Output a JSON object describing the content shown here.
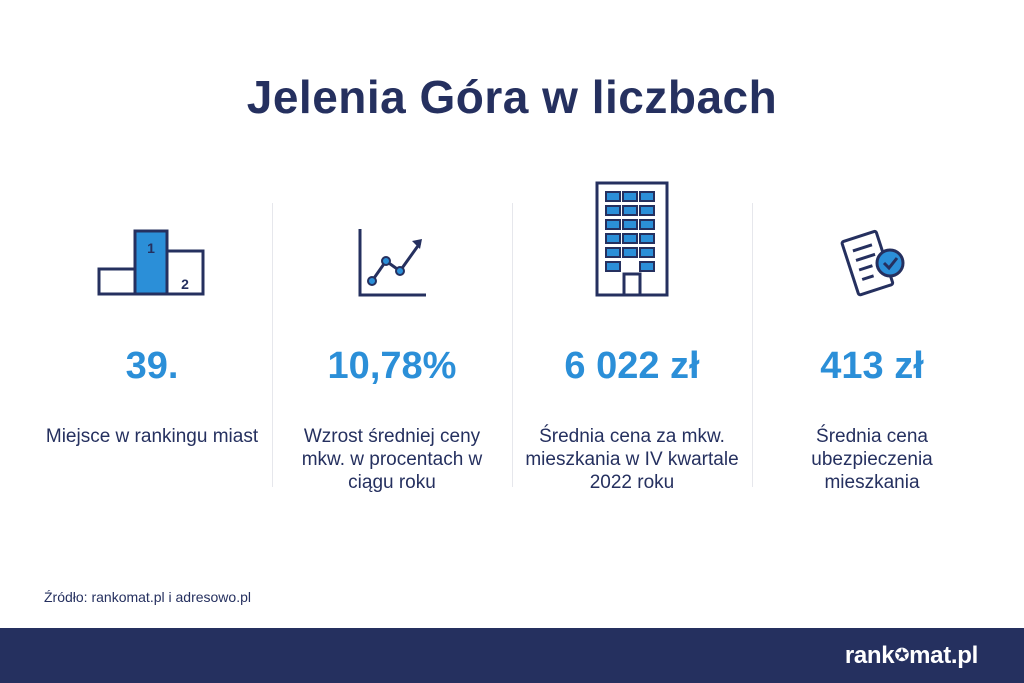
{
  "title": "Jelenia Góra w liczbach",
  "stats": [
    {
      "icon": "podium-icon",
      "value": "39.",
      "description": "Miejsce w rankingu miast"
    },
    {
      "icon": "growth-chart-icon",
      "value": "10,78%",
      "description": "Wzrost średniej ceny mkw. w procentach w ciągu roku"
    },
    {
      "icon": "building-icon",
      "value": "6 022 zł",
      "description": "Średnia cena za mkw. mieszkania w IV kwartale 2022 roku"
    },
    {
      "icon": "insurance-document-icon",
      "value": "413 zł",
      "description": "Średnia cena ubezpieczenia mieszkania"
    }
  ],
  "podium_labels": {
    "first": "1",
    "second": "2"
  },
  "source": "Źródło: rankomat.pl i adresowo.pl",
  "brand": {
    "name_start": "rank",
    "name_end": "mat.pl"
  },
  "colors": {
    "navy": "#25305f",
    "accent": "#2b8fd8",
    "divider": "#e6e7ec"
  }
}
